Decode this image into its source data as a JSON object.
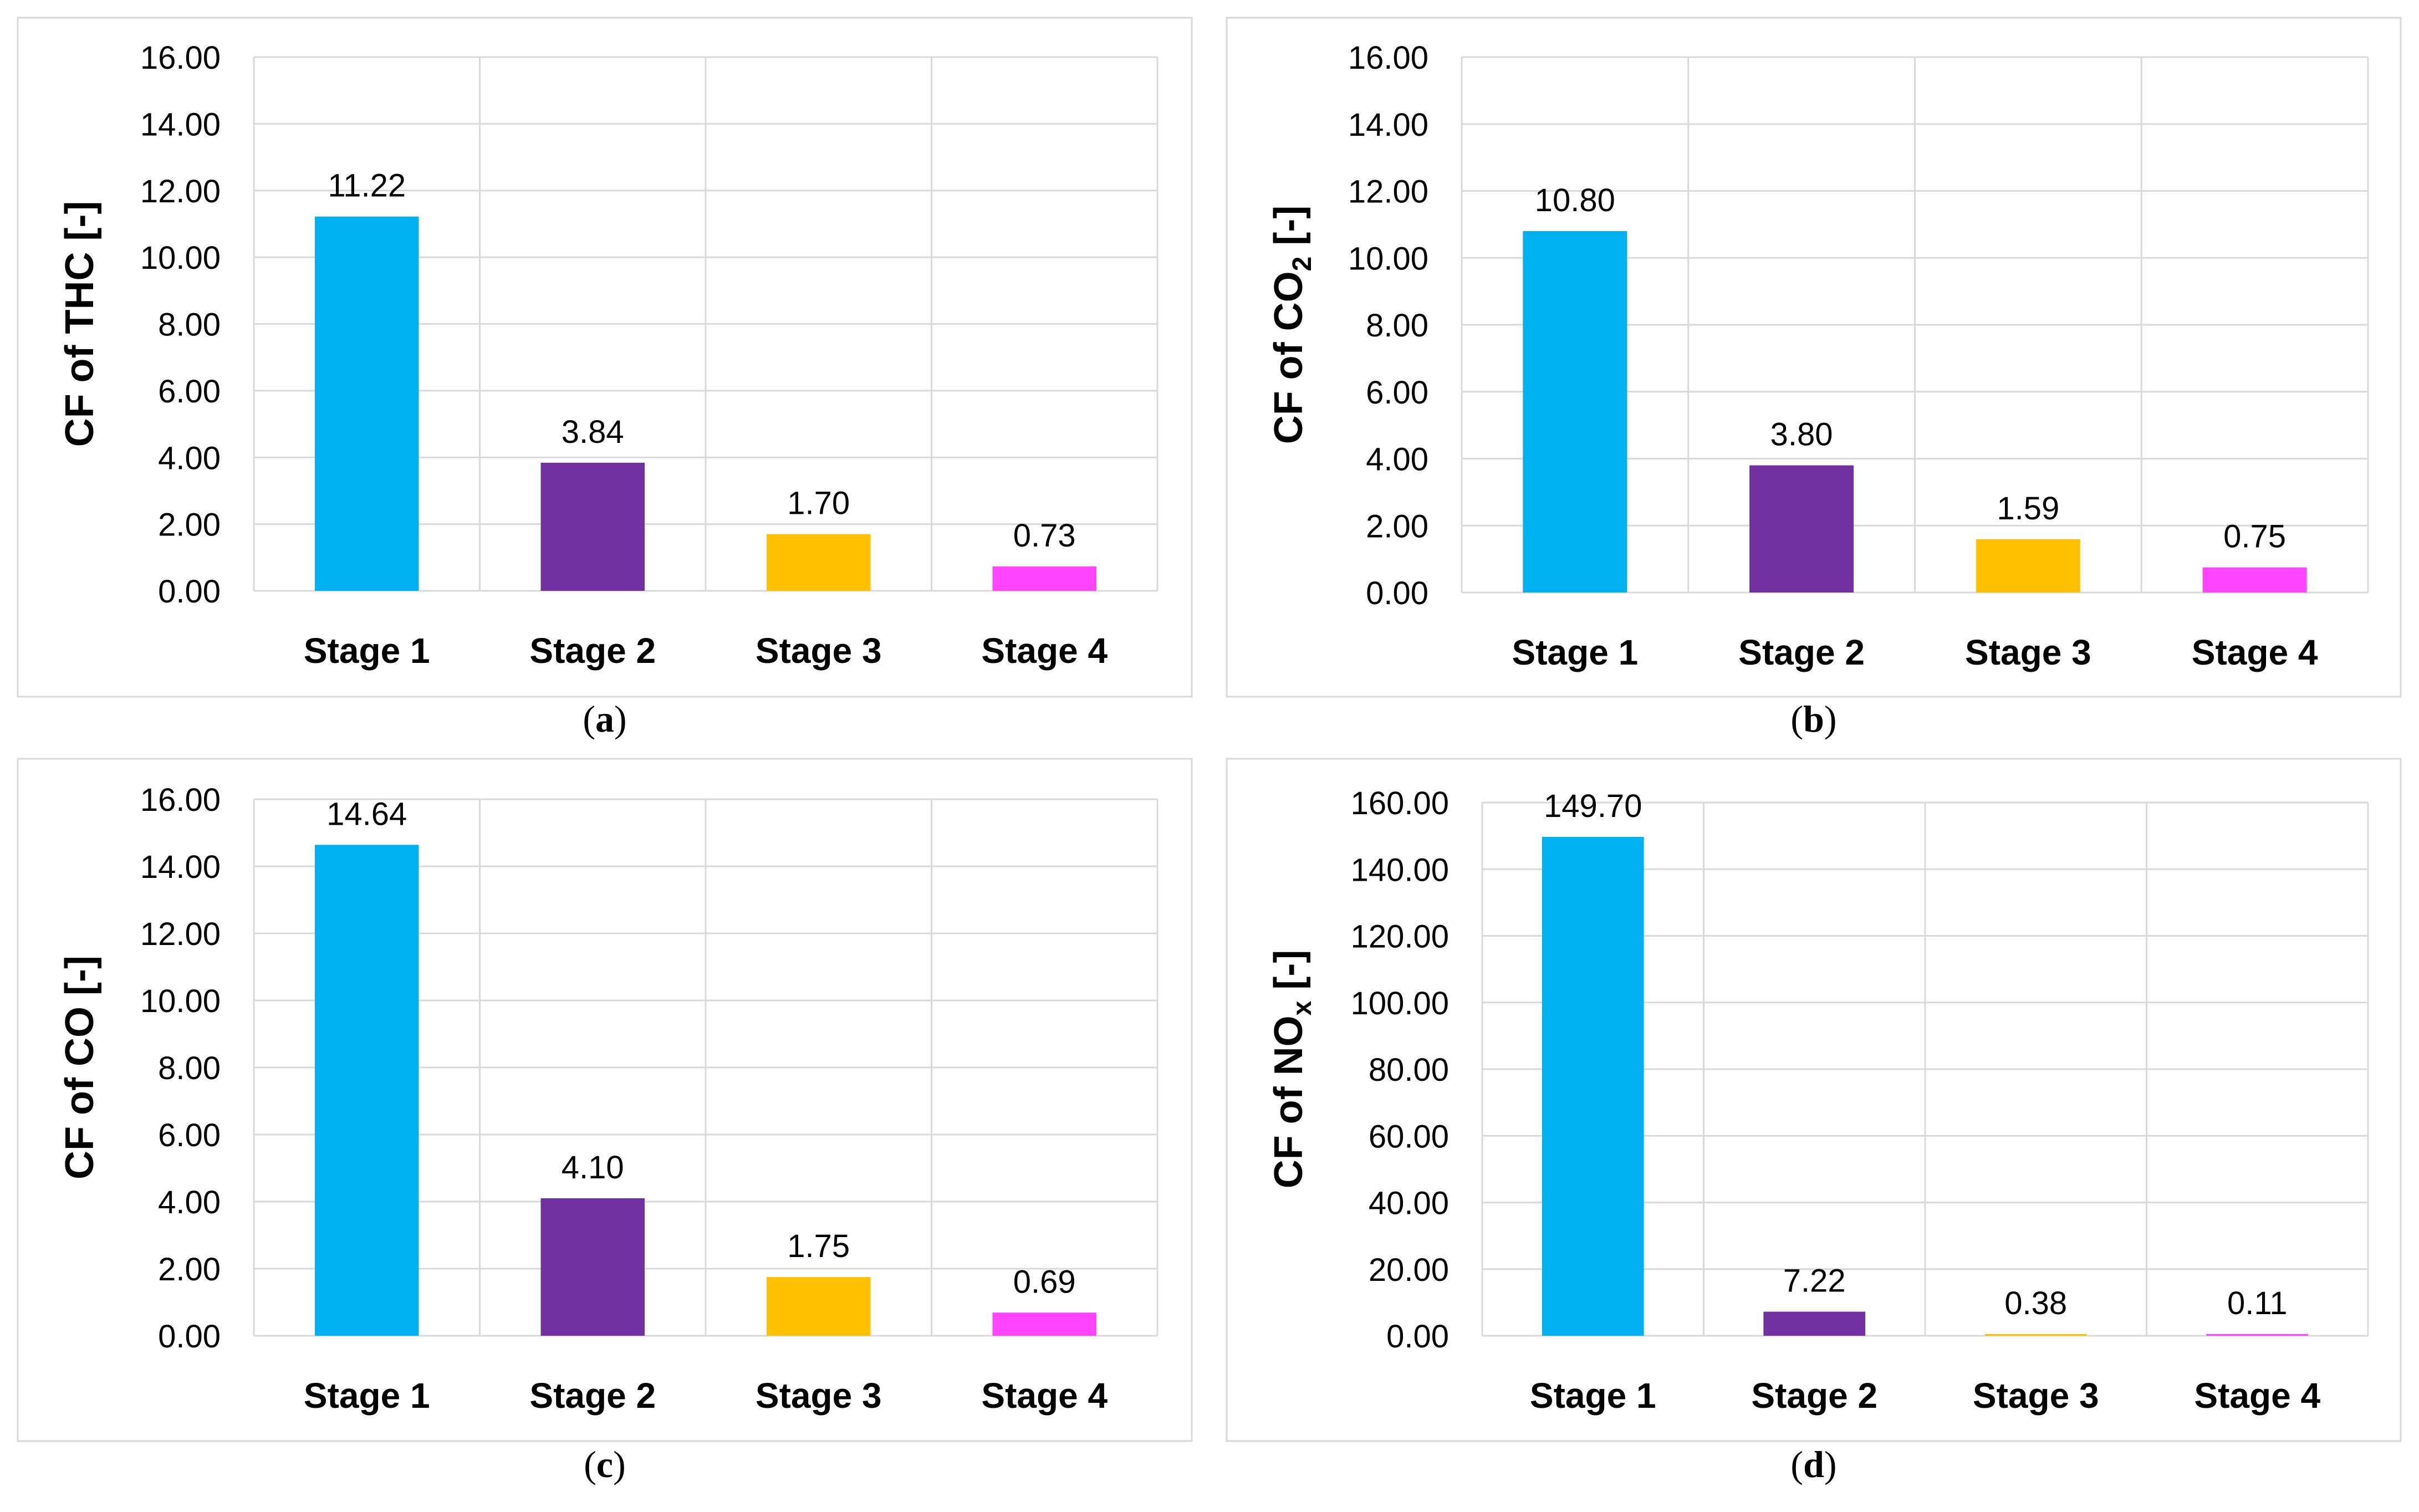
{
  "colors": [
    "#00b0f0",
    "#7030a0",
    "#ffc000",
    "#ff44ff"
  ],
  "chart_data": [
    {
      "type": "bar",
      "panel_label": "(a)",
      "panel_letter": "a",
      "ylabel": "CF of THC [-]",
      "ylabel_parts": [
        {
          "t": "CF of THC [-]",
          "sub": false
        }
      ],
      "categories": [
        "Stage 1",
        "Stage 2",
        "Stage 3",
        "Stage 4"
      ],
      "values": [
        11.22,
        3.84,
        1.7,
        0.73
      ],
      "value_labels": [
        "11.22",
        "3.84",
        "1.70",
        "0.73"
      ],
      "ylim": [
        0,
        16
      ],
      "yticks": [
        "0.00",
        "2.00",
        "4.00",
        "6.00",
        "8.00",
        "10.00",
        "12.00",
        "14.00",
        "16.00"
      ],
      "grid": true
    },
    {
      "type": "bar",
      "panel_label": "(b)",
      "panel_letter": "b",
      "ylabel": "CF of CO2 [-]",
      "ylabel_parts": [
        {
          "t": "CF of CO",
          "sub": false
        },
        {
          "t": "2",
          "sub": true
        },
        {
          "t": " [-]",
          "sub": false
        }
      ],
      "categories": [
        "Stage 1",
        "Stage 2",
        "Stage 3",
        "Stage 4"
      ],
      "values": [
        10.8,
        3.8,
        1.59,
        0.75
      ],
      "value_labels": [
        "10.80",
        "3.80",
        "1.59",
        "0.75"
      ],
      "ylim": [
        0,
        16
      ],
      "yticks": [
        "0.00",
        "2.00",
        "4.00",
        "6.00",
        "8.00",
        "10.00",
        "12.00",
        "14.00",
        "16.00"
      ],
      "grid": true
    },
    {
      "type": "bar",
      "panel_label": "(c)",
      "panel_letter": "c",
      "ylabel": "CF of CO [-]",
      "ylabel_parts": [
        {
          "t": "CF of CO [-]",
          "sub": false
        }
      ],
      "categories": [
        "Stage 1",
        "Stage 2",
        "Stage 3",
        "Stage 4"
      ],
      "values": [
        14.64,
        4.1,
        1.75,
        0.69
      ],
      "value_labels": [
        "14.64",
        "4.10",
        "1.75",
        "0.69"
      ],
      "ylim": [
        0,
        16
      ],
      "yticks": [
        "0.00",
        "2.00",
        "4.00",
        "6.00",
        "8.00",
        "10.00",
        "12.00",
        "14.00",
        "16.00"
      ],
      "grid": true
    },
    {
      "type": "bar",
      "panel_label": "(d)",
      "panel_letter": "d",
      "ylabel": "CF of NOx [-]",
      "ylabel_parts": [
        {
          "t": "CF of NO",
          "sub": false
        },
        {
          "t": "x",
          "sub": true
        },
        {
          "t": " [-]",
          "sub": false
        }
      ],
      "categories": [
        "Stage 1",
        "Stage 2",
        "Stage 3",
        "Stage 4"
      ],
      "values": [
        149.7,
        7.22,
        0.38,
        0.11
      ],
      "value_labels": [
        "149.70",
        "7.22",
        "0.38",
        "0.11"
      ],
      "ylim": [
        0,
        160
      ],
      "yticks": [
        "0.00",
        "20.00",
        "40.00",
        "60.00",
        "80.00",
        "100.00",
        "120.00",
        "140.00",
        "160.00"
      ],
      "grid": true
    }
  ]
}
